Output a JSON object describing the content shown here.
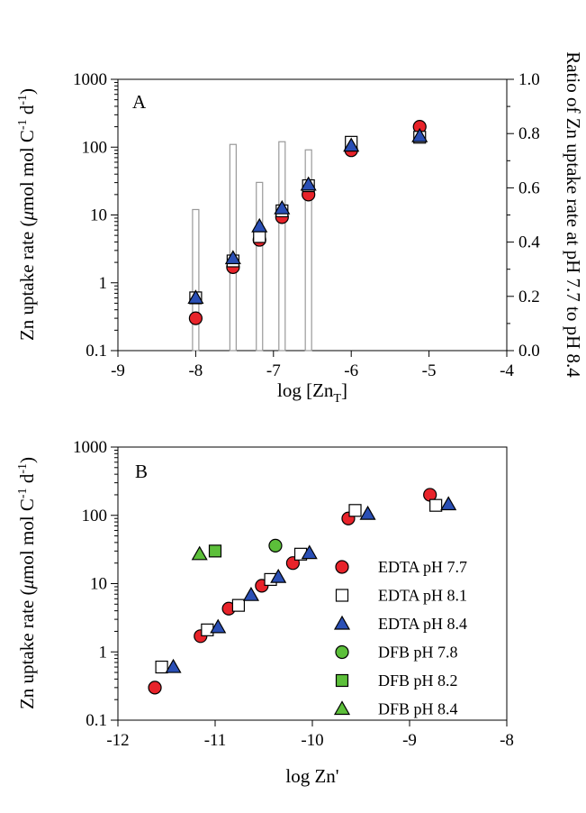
{
  "chart_data": [
    {
      "panel": "A",
      "type": "scatter",
      "panel_label": "A",
      "xlabel_base": "log [Zn",
      "xlabel_sub": "T",
      "xlabel_close": "]",
      "ylabel_left_prefix": "Zn uptake rate (",
      "ylabel_left_mu": "μ",
      "ylabel_left_mid": "mol mol C",
      "ylabel_left_sup1": "-1",
      "ylabel_left_d": " d",
      "ylabel_left_sup2": "-1",
      "ylabel_left_close": ")",
      "ylabel_right": "Ratio of Zn uptake rate at pH 7.7 to pH 8.4",
      "xlim": [
        -9,
        -4
      ],
      "xticks": [
        -9,
        -8,
        -7,
        -6,
        -5,
        -4
      ],
      "xtick_labels": [
        "-9",
        "-8",
        "-7",
        "-6",
        "-5",
        "-4"
      ],
      "ylim": [
        0.1,
        1000
      ],
      "yscale": "log",
      "yticks": [
        0.1,
        1,
        10,
        100,
        1000
      ],
      "ytick_labels": [
        "0.1",
        "1",
        "10",
        "100",
        "1000"
      ],
      "y2lim": [
        0,
        1
      ],
      "y2ticks": [
        0,
        0.2,
        0.4,
        0.6,
        0.8,
        1.0
      ],
      "y2tick_labels": [
        "0.0",
        "0.2",
        "0.4",
        "0.6",
        "0.8",
        "1.0"
      ],
      "series": [
        {
          "name": "EDTA pH 7.7",
          "marker": "circle",
          "color": "#e8232a",
          "x": [
            -8.0,
            -7.52,
            -7.18,
            -6.89,
            -6.55,
            -6.0,
            -5.12
          ],
          "y": [
            0.3,
            1.7,
            4.3,
            9.3,
            20,
            90,
            200
          ]
        },
        {
          "name": "EDTA pH 8.1",
          "marker": "square",
          "color": "#ffffff",
          "x": [
            -8.0,
            -7.52,
            -7.18,
            -6.89,
            -6.55,
            -6.0,
            -5.12
          ],
          "y": [
            0.6,
            2.1,
            4.8,
            11.5,
            27,
            118,
            140
          ]
        },
        {
          "name": "EDTA pH 8.4",
          "marker": "triangle",
          "color": "#2a4fb5",
          "x": [
            -8.0,
            -7.52,
            -7.18,
            -6.89,
            -6.55,
            -6.0,
            -5.12
          ],
          "y": [
            0.6,
            2.3,
            6.8,
            12.5,
            28,
            105,
            145
          ]
        },
        {
          "name": "Ratio pH 7.7 / pH 8.4",
          "type": "bar",
          "axis": "right",
          "color": "#999999",
          "x": [
            -8.0,
            -7.52,
            -7.18,
            -6.89,
            -6.55
          ],
          "y": [
            0.52,
            0.76,
            0.62,
            0.77,
            0.74
          ]
        }
      ]
    },
    {
      "panel": "B",
      "type": "scatter",
      "panel_label": "B",
      "xlabel": "log Zn'",
      "ylabel_left_prefix": "Zn uptake rate (",
      "ylabel_left_mu": "μ",
      "ylabel_left_mid": "mol mol C",
      "ylabel_left_sup1": "-1",
      "ylabel_left_d": " d",
      "ylabel_left_sup2": "-1",
      "ylabel_left_close": ")",
      "xlim": [
        -12,
        -8
      ],
      "xticks": [
        -12,
        -11,
        -10,
        -9,
        -8
      ],
      "xtick_labels": [
        "-12",
        "-11",
        "-10",
        "-9",
        "-8"
      ],
      "ylim": [
        0.1,
        1000
      ],
      "yscale": "log",
      "yticks": [
        0.1,
        1,
        10,
        100,
        1000
      ],
      "ytick_labels": [
        "0.1",
        "1",
        "10",
        "100",
        "1000"
      ],
      "legend_position": "right",
      "series": [
        {
          "name": "EDTA pH 7.7",
          "marker": "circle",
          "color": "#e8232a",
          "x": [
            -11.62,
            -11.15,
            -10.86,
            -10.52,
            -10.2,
            -9.63,
            -8.79
          ],
          "y": [
            0.3,
            1.7,
            4.3,
            9.3,
            20,
            90,
            200
          ]
        },
        {
          "name": "EDTA pH 8.1",
          "marker": "square",
          "color": "#ffffff",
          "x": [
            -11.55,
            -11.08,
            -10.76,
            -10.43,
            -10.12,
            -9.56,
            -8.73
          ],
          "y": [
            0.6,
            2.1,
            4.8,
            11.5,
            27,
            118,
            140
          ]
        },
        {
          "name": "EDTA pH 8.4",
          "marker": "triangle",
          "color": "#2a4fb5",
          "x": [
            -11.43,
            -10.97,
            -10.63,
            -10.35,
            -10.03,
            -9.43,
            -8.6
          ],
          "y": [
            0.6,
            2.3,
            6.8,
            12.5,
            28,
            105,
            145
          ]
        },
        {
          "name": "DFB pH 7.8",
          "marker": "circle",
          "color": "#5cbf3a",
          "x": [
            -10.38
          ],
          "y": [
            36
          ]
        },
        {
          "name": "DFB pH 8.2",
          "marker": "square",
          "color": "#5cbf3a",
          "x": [
            -11.0
          ],
          "y": [
            30
          ]
        },
        {
          "name": "DFB pH 8.4",
          "marker": "triangle",
          "color": "#5cbf3a",
          "x": [
            -11.16
          ],
          "y": [
            27
          ]
        }
      ]
    }
  ]
}
